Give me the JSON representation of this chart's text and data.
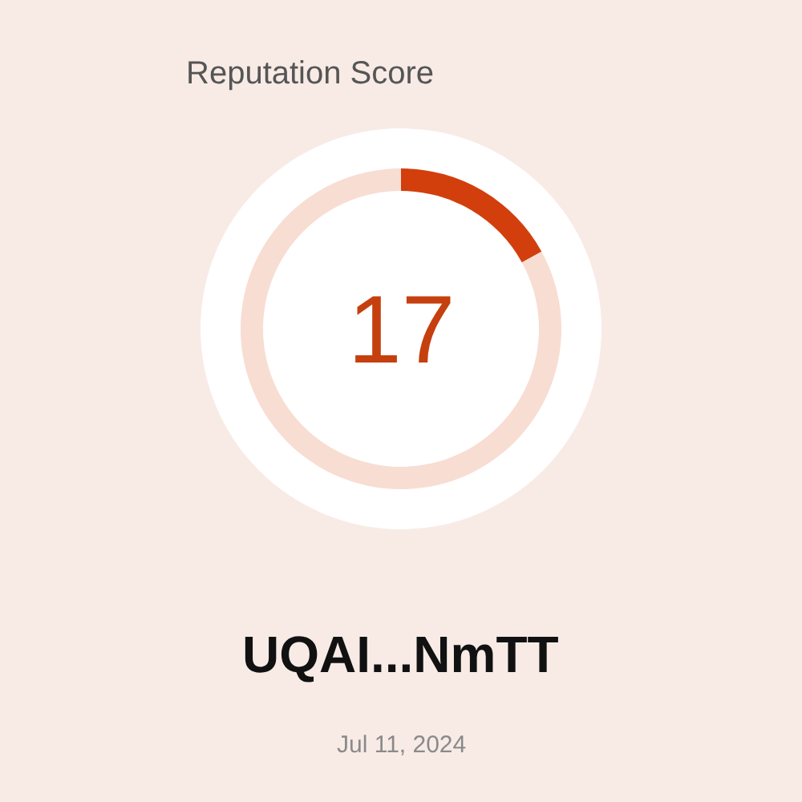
{
  "chart_data": {
    "type": "donut",
    "title": "Reputation Score",
    "categories": [
      null,
      null
    ],
    "values": [
      17,
      83
    ],
    "colors": [
      "#d23f0c",
      "#f8ddd3"
    ],
    "annotations": [
      "17",
      "UQAI...NmTT",
      "Jul 11, 2024"
    ]
  }
}
